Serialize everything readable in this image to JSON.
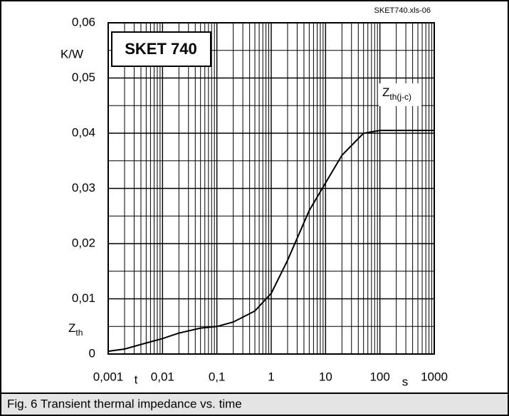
{
  "caption": "Fig. 6 Transient thermal impedance vs. time",
  "chart_data": {
    "type": "line",
    "title": "SKET 740",
    "source": "SKET740.xls-06",
    "y_symbol": "Z",
    "y_subscript": "th",
    "y_unit": "K/W",
    "x_label": "t",
    "x_unit": "s",
    "xscale": "log",
    "grid": true,
    "x": [
      0.001,
      0.002,
      0.005,
      0.01,
      0.02,
      0.05,
      0.1,
      0.2,
      0.5,
      1,
      2,
      5,
      10,
      20,
      50,
      100,
      1000
    ],
    "series": [
      {
        "name": "Z",
        "subscript": "th(j-c)",
        "color": "#000000",
        "values": [
          0.0005,
          0.0009,
          0.002,
          0.0028,
          0.0038,
          0.0047,
          0.005,
          0.0058,
          0.0078,
          0.011,
          0.017,
          0.026,
          0.031,
          0.036,
          0.04,
          0.0405,
          0.0405
        ]
      }
    ],
    "xlim": [
      0.001,
      1000
    ],
    "ylim": [
      0,
      0.06
    ],
    "xticks": [
      {
        "value": 0.001,
        "label": "0,001"
      },
      {
        "value": 0.01,
        "label": "0,01"
      },
      {
        "value": 0.1,
        "label": "0,1"
      },
      1,
      10,
      100,
      1000
    ],
    "yticks": [
      0,
      {
        "value": 0.01,
        "label": "0,01"
      },
      {
        "value": 0.02,
        "label": "0,02"
      },
      {
        "value": 0.03,
        "label": "0,03"
      },
      {
        "value": 0.04,
        "label": "0,04"
      },
      {
        "value": 0.05,
        "label": "0,05"
      },
      {
        "value": 0.06,
        "label": "0,06"
      }
    ],
    "xminorticks": [
      0.002,
      0.003,
      0.004,
      0.005,
      0.006,
      0.007,
      0.008,
      0.009,
      0.02,
      0.03,
      0.04,
      0.05,
      0.06,
      0.07,
      0.08,
      0.09,
      0.2,
      0.3,
      0.4,
      0.5,
      0.6,
      0.7,
      0.8,
      0.9,
      2,
      3,
      4,
      5,
      6,
      7,
      8,
      9,
      20,
      30,
      40,
      50,
      60,
      70,
      80,
      90,
      200,
      300,
      400,
      500,
      600,
      700,
      800,
      900
    ],
    "yminorticks": [
      0.005,
      0.015,
      0.025,
      0.035,
      0.045,
      0.055
    ]
  }
}
